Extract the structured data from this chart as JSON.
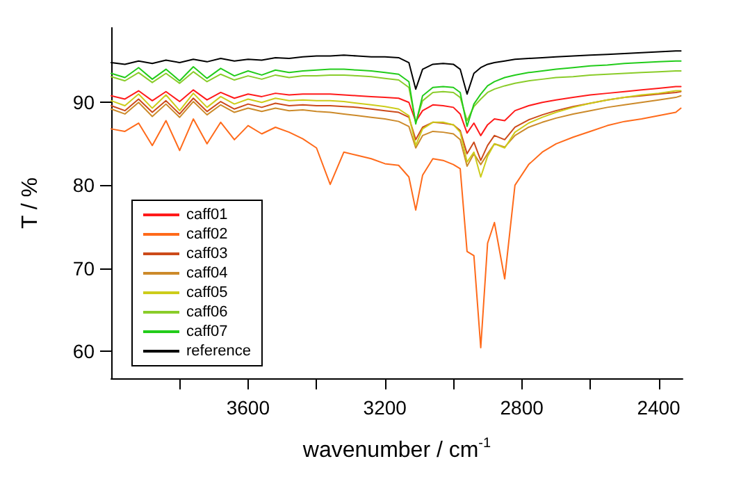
{
  "chart_data": {
    "type": "line",
    "xlabel": "wavenumber / cm$^{-1}$",
    "ylabel": "T / %",
    "x": [
      4000,
      3960,
      3920,
      3880,
      3840,
      3800,
      3760,
      3720,
      3680,
      3640,
      3600,
      3560,
      3520,
      3480,
      3440,
      3400,
      3360,
      3320,
      3280,
      3240,
      3200,
      3160,
      3130,
      3110,
      3090,
      3060,
      3030,
      3000,
      2980,
      2960,
      2940,
      2920,
      2900,
      2880,
      2850,
      2820,
      2780,
      2740,
      2700,
      2650,
      2600,
      2550,
      2500,
      2450,
      2400,
      2350,
      2335
    ],
    "xlim": [
      4000,
      2330
    ],
    "xticks": [
      {
        "value": 3800,
        "label": null
      },
      3600,
      {
        "value": 3400,
        "label": null
      },
      3200,
      {
        "value": 3000,
        "label": null
      },
      2800,
      {
        "value": 2600,
        "label": null
      },
      2400
    ],
    "ylim": [
      56.7,
      99
    ],
    "yticks": [
      60,
      70,
      80,
      90
    ],
    "grid": false,
    "legend": "bottom left",
    "marker": "none",
    "line_style": "solid",
    "series": [
      {
        "name": "caff01",
        "color": "#ff1a1a",
        "values": [
          90.8,
          90.4,
          91.4,
          90.2,
          91.3,
          90.1,
          91.5,
          90.3,
          91.2,
          90.5,
          91.0,
          90.7,
          91.1,
          90.9,
          91.0,
          91.0,
          91.0,
          90.9,
          90.8,
          90.7,
          90.6,
          90.5,
          90.0,
          87.7,
          89.0,
          89.7,
          89.6,
          89.4,
          88.6,
          86.3,
          87.5,
          86.0,
          87.3,
          88.0,
          87.8,
          89.0,
          89.6,
          90.0,
          90.3,
          90.6,
          90.9,
          91.1,
          91.3,
          91.5,
          91.7,
          91.9,
          91.9
        ]
      },
      {
        "name": "caff02",
        "color": "#ff6a1a",
        "values": [
          86.8,
          86.5,
          87.5,
          84.8,
          87.8,
          84.2,
          88.0,
          85.0,
          87.6,
          85.5,
          87.2,
          86.2,
          87.0,
          86.4,
          85.6,
          84.5,
          80.1,
          84.0,
          83.6,
          83.2,
          82.6,
          82.4,
          81.0,
          77.0,
          81.2,
          83.2,
          83.0,
          82.5,
          82.0,
          72.0,
          71.5,
          60.4,
          73.0,
          75.5,
          68.7,
          80.0,
          82.5,
          84.0,
          85.0,
          85.8,
          86.5,
          87.2,
          87.7,
          88.0,
          88.4,
          88.8,
          89.3
        ]
      },
      {
        "name": "caff03",
        "color": "#cc4a1a",
        "values": [
          89.6,
          89.0,
          90.4,
          88.8,
          90.2,
          88.6,
          90.5,
          88.9,
          90.1,
          89.2,
          89.8,
          89.4,
          89.9,
          89.6,
          89.7,
          89.6,
          89.6,
          89.5,
          89.4,
          89.2,
          89.0,
          88.8,
          88.2,
          85.5,
          87.0,
          87.6,
          87.5,
          87.3,
          86.6,
          83.8,
          85.2,
          83.0,
          84.8,
          86.0,
          85.5,
          87.0,
          87.9,
          88.5,
          89.0,
          89.5,
          89.9,
          90.3,
          90.6,
          90.8,
          91.0,
          91.2,
          91.3
        ]
      },
      {
        "name": "caff04",
        "color": "#cc8a2a",
        "values": [
          89.2,
          88.6,
          90.0,
          88.3,
          89.8,
          88.2,
          90.1,
          88.5,
          89.7,
          88.8,
          89.3,
          88.9,
          89.3,
          89.0,
          89.1,
          88.9,
          88.8,
          88.6,
          88.4,
          88.2,
          88.0,
          87.7,
          87.1,
          84.5,
          86.0,
          86.5,
          86.4,
          86.2,
          85.5,
          82.3,
          83.8,
          82.5,
          83.8,
          85.0,
          84.6,
          86.0,
          87.0,
          87.6,
          88.1,
          88.6,
          89.0,
          89.4,
          89.7,
          90.0,
          90.3,
          90.6,
          90.8
        ]
      },
      {
        "name": "caff05",
        "color": "#cccc1a",
        "values": [
          90.2,
          89.6,
          91.0,
          89.3,
          90.9,
          89.0,
          91.1,
          89.4,
          90.7,
          89.8,
          90.4,
          90.0,
          90.5,
          90.2,
          90.3,
          90.2,
          90.2,
          90.1,
          89.9,
          89.7,
          89.5,
          89.2,
          88.4,
          84.8,
          86.8,
          87.6,
          87.6,
          87.3,
          86.4,
          82.8,
          84.0,
          81.0,
          83.5,
          85.0,
          84.5,
          86.4,
          87.5,
          88.2,
          88.8,
          89.4,
          89.9,
          90.3,
          90.6,
          90.9,
          91.1,
          91.4,
          91.4
        ]
      },
      {
        "name": "caff06",
        "color": "#8acc2a",
        "values": [
          93.1,
          92.6,
          93.6,
          92.4,
          93.5,
          92.3,
          93.7,
          92.5,
          93.4,
          92.7,
          93.2,
          92.8,
          93.3,
          93.0,
          93.2,
          93.2,
          93.3,
          93.3,
          93.2,
          93.1,
          92.9,
          92.7,
          91.8,
          87.6,
          90.2,
          91.2,
          91.3,
          91.2,
          90.6,
          87.8,
          89.5,
          90.4,
          91.2,
          91.6,
          92.0,
          92.3,
          92.6,
          92.8,
          93.0,
          93.1,
          93.3,
          93.4,
          93.5,
          93.6,
          93.7,
          93.8,
          93.8
        ]
      },
      {
        "name": "caff07",
        "color": "#22cc1a",
        "values": [
          93.5,
          93.0,
          94.2,
          92.8,
          94.0,
          92.6,
          94.3,
          92.9,
          94.1,
          93.2,
          93.8,
          93.3,
          93.9,
          93.6,
          93.8,
          93.9,
          94.0,
          94.0,
          93.9,
          93.8,
          93.6,
          93.4,
          92.5,
          87.4,
          90.8,
          91.8,
          91.9,
          91.8,
          91.2,
          87.1,
          89.8,
          91.0,
          92.0,
          92.5,
          93.0,
          93.3,
          93.6,
          93.8,
          94.0,
          94.2,
          94.4,
          94.5,
          94.7,
          94.8,
          94.9,
          95.0,
          95.0
        ]
      },
      {
        "name": "reference",
        "color": "#000000",
        "values": [
          94.8,
          94.6,
          95.0,
          94.7,
          95.1,
          94.8,
          95.2,
          94.9,
          95.3,
          95.0,
          95.2,
          95.1,
          95.4,
          95.3,
          95.5,
          95.6,
          95.6,
          95.7,
          95.6,
          95.5,
          95.5,
          95.4,
          94.8,
          91.6,
          94.0,
          94.6,
          94.7,
          94.6,
          94.0,
          91.0,
          93.5,
          94.2,
          94.6,
          94.8,
          95.0,
          95.2,
          95.3,
          95.4,
          95.5,
          95.6,
          95.7,
          95.8,
          95.9,
          96.0,
          96.1,
          96.2,
          96.2
        ]
      }
    ]
  }
}
